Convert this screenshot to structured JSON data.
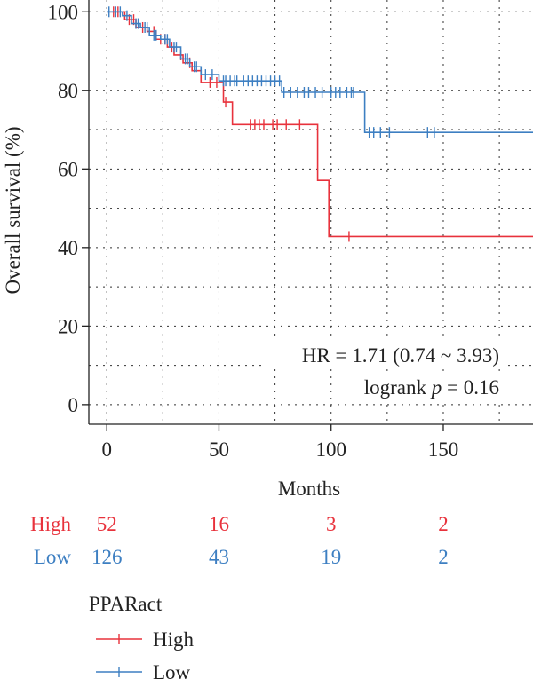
{
  "colors": {
    "high": "#e8323c",
    "low": "#3d7fc2"
  },
  "chart_data": {
    "type": "line",
    "title": "",
    "xlabel": "Months",
    "ylabel": "Overall survival (%)",
    "xlim": [
      -8,
      190
    ],
    "ylim": [
      -5,
      103
    ],
    "x_ticks": [
      0,
      50,
      100,
      150
    ],
    "y_ticks": [
      0,
      20,
      40,
      60,
      80,
      100
    ],
    "grid": true,
    "series": [
      {
        "name": "High",
        "steps": [
          [
            0,
            100
          ],
          [
            8,
            98
          ],
          [
            13,
            96
          ],
          [
            18,
            95
          ],
          [
            22,
            93
          ],
          [
            27,
            91
          ],
          [
            30,
            89
          ],
          [
            34,
            87
          ],
          [
            38,
            85
          ],
          [
            42,
            82
          ],
          [
            52,
            77
          ],
          [
            56,
            71.3
          ],
          [
            94,
            57.1
          ],
          [
            99,
            42.8
          ],
          [
            190,
            42.8
          ]
        ],
        "censors": [
          [
            3,
            100
          ],
          [
            5,
            100
          ],
          [
            10,
            98
          ],
          [
            12,
            98
          ],
          [
            16,
            96
          ],
          [
            21,
            95
          ],
          [
            24,
            93
          ],
          [
            26,
            93
          ],
          [
            29,
            91
          ],
          [
            33,
            89
          ],
          [
            37,
            87
          ],
          [
            46,
            82
          ],
          [
            49,
            82
          ],
          [
            53,
            77
          ],
          [
            64,
            71.3
          ],
          [
            66,
            71.3
          ],
          [
            68,
            71.3
          ],
          [
            70,
            71.3
          ],
          [
            74,
            71.3
          ],
          [
            76,
            71.3
          ],
          [
            80,
            71.3
          ],
          [
            86,
            71.3
          ],
          [
            108,
            42.8
          ]
        ]
      },
      {
        "name": "Low",
        "steps": [
          [
            0,
            100
          ],
          [
            7,
            99
          ],
          [
            11,
            97
          ],
          [
            15,
            96
          ],
          [
            19,
            94
          ],
          [
            24,
            93
          ],
          [
            28,
            91
          ],
          [
            33,
            88
          ],
          [
            37,
            86
          ],
          [
            42,
            84
          ],
          [
            50,
            82.4
          ],
          [
            78,
            79.5
          ],
          [
            115,
            69.3
          ],
          [
            190,
            69.3
          ]
        ],
        "censors": [
          [
            1,
            100
          ],
          [
            4,
            100
          ],
          [
            6,
            100
          ],
          [
            9,
            99
          ],
          [
            13,
            97
          ],
          [
            14,
            97
          ],
          [
            17,
            96
          ],
          [
            18,
            96
          ],
          [
            21,
            94
          ],
          [
            22,
            94
          ],
          [
            26,
            93
          ],
          [
            27,
            93
          ],
          [
            30,
            91
          ],
          [
            31,
            91
          ],
          [
            35,
            88
          ],
          [
            36,
            88
          ],
          [
            39,
            86
          ],
          [
            40,
            86
          ],
          [
            44,
            84
          ],
          [
            47,
            84
          ],
          [
            52,
            82.4
          ],
          [
            53,
            82.4
          ],
          [
            55,
            82.4
          ],
          [
            57,
            82.4
          ],
          [
            58,
            82.4
          ],
          [
            61,
            82.4
          ],
          [
            63,
            82.4
          ],
          [
            65,
            82.4
          ],
          [
            67,
            82.4
          ],
          [
            69,
            82.4
          ],
          [
            71,
            82.4
          ],
          [
            73,
            82.4
          ],
          [
            75,
            82.4
          ],
          [
            77,
            82.4
          ],
          [
            79,
            79.5
          ],
          [
            82,
            79.5
          ],
          [
            85,
            79.5
          ],
          [
            88,
            79.5
          ],
          [
            90,
            79.5
          ],
          [
            93,
            79.5
          ],
          [
            96,
            79.5
          ],
          [
            100,
            79.5
          ],
          [
            102,
            79.5
          ],
          [
            104,
            79.5
          ],
          [
            107,
            79.5
          ],
          [
            109,
            79.5
          ],
          [
            110,
            79.5
          ],
          [
            117,
            69.3
          ],
          [
            119,
            69.3
          ],
          [
            122,
            69.3
          ],
          [
            126,
            69.3
          ],
          [
            143,
            69.3
          ],
          [
            146,
            69.3
          ]
        ]
      }
    ],
    "annotations": {
      "hr": "HR = 1.71 (0.74 ~ 3.93)",
      "logrank_label": "logrank ",
      "logrank_p": "p",
      "logrank_value": " = 0.16"
    },
    "risk_table": {
      "rows": [
        {
          "name": "High",
          "values": [
            52,
            16,
            3,
            2
          ]
        },
        {
          "name": "Low",
          "values": [
            126,
            43,
            19,
            2
          ]
        }
      ]
    },
    "legend": {
      "title": "PPARact",
      "entries": [
        "High",
        "Low"
      ],
      "placement": "bottom-left"
    }
  }
}
